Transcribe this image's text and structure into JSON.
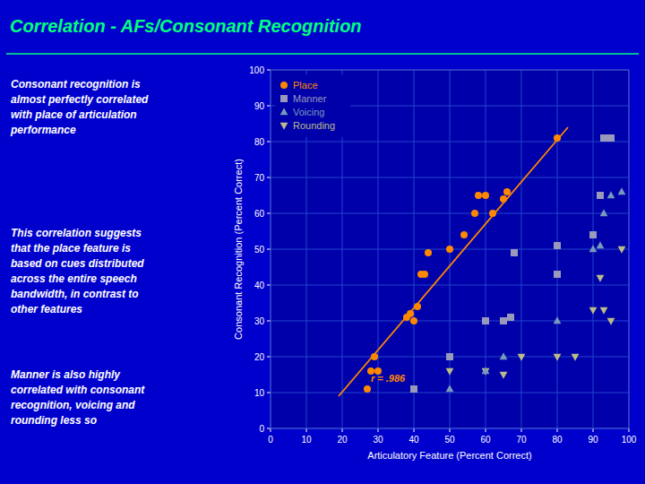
{
  "chart_data": {
    "type": "scatter",
    "title": "Correlation - AFs/Consonant Recognition",
    "paragraphs": [
      "Consonant recognition is\nalmost perfectly correlated\nwith place of articulation\nperformance",
      "This correlation suggests\nthat the place feature is\nbased on cues distributed\nacross the entire speech\nbandwidth, in contrast to\nother features",
      "Manner is also highly\ncorrelated with consonant\nrecognition, voicing and\nrounding less so"
    ],
    "x_label": "Articulatory Feature (Percent Correct)",
    "y_label": "Consonant Recognition (Percent Correct)",
    "xlim": [
      0,
      100
    ],
    "ylim": [
      0,
      100
    ],
    "xticks": [
      0,
      10,
      20,
      30,
      40,
      50,
      60,
      70,
      80,
      90,
      100
    ],
    "yticks": [
      0,
      10,
      20,
      30,
      40,
      50,
      60,
      70,
      80,
      90,
      100
    ],
    "grid": true,
    "legend": "upper left",
    "series": [
      {
        "name": "Place",
        "color": "#FF8800",
        "marker": "circle",
        "x": [
          27,
          28,
          29,
          30,
          38,
          39,
          40,
          41,
          42,
          43,
          44,
          50,
          54,
          57,
          58,
          60,
          62,
          65,
          66,
          80
        ],
        "values": [
          11,
          16,
          20,
          16,
          31,
          32,
          30,
          34,
          43,
          43,
          49,
          50,
          54,
          60,
          65,
          65,
          60,
          64,
          66,
          81
        ]
      },
      {
        "name": "Manner",
        "color": "#9999BB",
        "marker": "square",
        "x": [
          40,
          50,
          60,
          65,
          67,
          68,
          80,
          80,
          90,
          92,
          93,
          95
        ],
        "values": [
          11,
          20,
          30,
          30,
          31,
          49,
          43,
          51,
          54,
          65,
          81,
          81
        ]
      },
      {
        "name": "Voicing",
        "color": "#7799BB",
        "marker": "triangle-up",
        "x": [
          50,
          60,
          65,
          67,
          80,
          90,
          92,
          93,
          95,
          98
        ],
        "values": [
          11,
          16,
          20,
          31,
          30,
          50,
          51,
          60,
          65,
          66
        ]
      },
      {
        "name": "Rounding",
        "color": "#BBBB88",
        "marker": "triangle-down",
        "x": [
          50,
          60,
          65,
          70,
          80,
          85,
          90,
          92,
          93,
          95,
          98
        ],
        "values": [
          16,
          16,
          15,
          20,
          20,
          20,
          33,
          42,
          33,
          30,
          50
        ]
      },
      {
        "type": "line",
        "color": "#FF8800",
        "x": [
          19,
          83
        ],
        "values": [
          9,
          84
        ]
      }
    ],
    "annotations": [
      {
        "text": "r = .986",
        "x": 28,
        "y": 13,
        "color": "#FF8800"
      }
    ]
  }
}
